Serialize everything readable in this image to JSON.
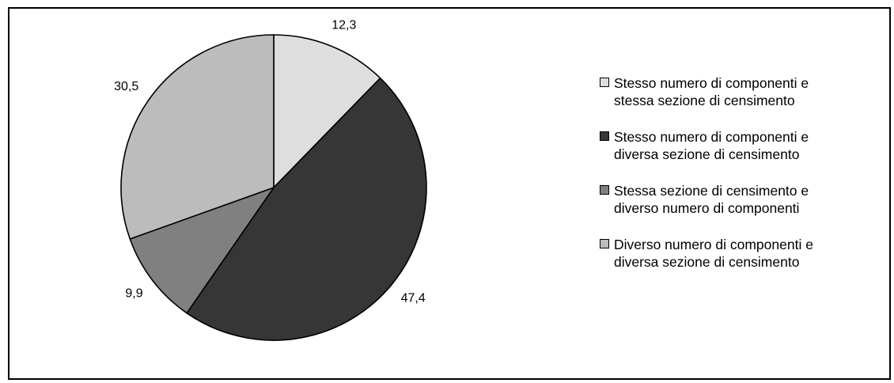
{
  "chart_data": {
    "type": "pie",
    "title": "",
    "slices": [
      {
        "label": "Stesso numero di componenti e\nstessa sezione di censimento",
        "value": 12.3,
        "value_label": "12,3",
        "color": "#dedede"
      },
      {
        "label": "Stesso numero di componenti e\ndiversa sezione di censimento",
        "value": 47.4,
        "value_label": "47,4",
        "color": "#363636"
      },
      {
        "label": "Stessa sezione di censimento e\ndiverso numero di componenti",
        "value": 9.9,
        "value_label": "9,9",
        "color": "#808080"
      },
      {
        "label": "Diverso numero di componenti e\ndiversa sezione di censimento",
        "value": 30.5,
        "value_label": "30,5",
        "color": "#bcbcbc"
      }
    ],
    "legend_position": "right",
    "start_angle_deg": 0,
    "direction": "clockwise"
  }
}
